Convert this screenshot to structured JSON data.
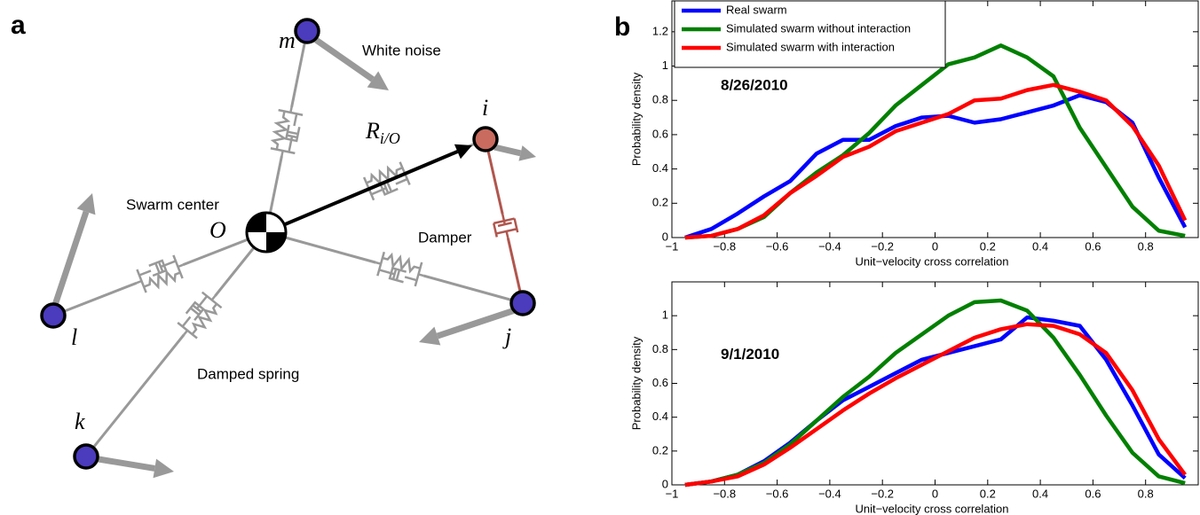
{
  "figure": {
    "label_a": "a",
    "label_b": "b"
  },
  "diagram": {
    "center_label": "Swarm center",
    "center_symbol": "O",
    "nodes": [
      "m",
      "i",
      "j",
      "k",
      "l"
    ],
    "vector": {
      "symbol": "R",
      "subscript": "i/O"
    },
    "annotations": {
      "white_noise": "White noise",
      "damper": "Damper",
      "damped_spring": "Damped spring"
    }
  },
  "chart_data": [
    {
      "type": "line",
      "annotation": "8/26/2010",
      "x_label": "Unit−velocity cross correlation",
      "y_label": "Probability density",
      "x": [
        -0.95,
        -0.85,
        -0.75,
        -0.65,
        -0.55,
        -0.45,
        -0.35,
        -0.25,
        -0.15,
        -0.05,
        0.05,
        0.15,
        0.25,
        0.35,
        0.45,
        0.55,
        0.65,
        0.75,
        0.85,
        0.95
      ],
      "series": [
        {
          "name": "Real swarm",
          "color": "#0000ff",
          "values": [
            0,
            0.05,
            0.14,
            0.24,
            0.33,
            0.49,
            0.57,
            0.57,
            0.65,
            0.7,
            0.71,
            0.67,
            0.69,
            0.73,
            0.77,
            0.83,
            0.79,
            0.67,
            0.35,
            0.06
          ]
        },
        {
          "name": "Simulated swarm without interaction",
          "color": "#008000",
          "values": [
            0,
            0.01,
            0.05,
            0.12,
            0.26,
            0.38,
            0.48,
            0.61,
            0.77,
            0.89,
            1.01,
            1.05,
            1.12,
            1.05,
            0.94,
            0.64,
            0.41,
            0.18,
            0.04,
            0.01
          ]
        },
        {
          "name": "Simulated swarm with interaction",
          "color": "#ff0000",
          "values": [
            0,
            0.01,
            0.05,
            0.13,
            0.26,
            0.36,
            0.47,
            0.53,
            0.62,
            0.67,
            0.72,
            0.8,
            0.81,
            0.86,
            0.89,
            0.85,
            0.8,
            0.65,
            0.42,
            0.1
          ]
        }
      ],
      "xlim": [
        -1,
        1
      ],
      "ylim": [
        0,
        1.38
      ],
      "xticks": [
        {
          "value": -1,
          "label": "−1"
        },
        {
          "value": -0.8,
          "label": "−0.8"
        },
        {
          "value": -0.6,
          "label": "−0.6"
        },
        {
          "value": -0.4,
          "label": "−0.4"
        },
        {
          "value": -0.2,
          "label": "−0.2"
        },
        0,
        0.2,
        0.4,
        0.6,
        0.8
      ],
      "yticks": [
        0,
        0.2,
        0.4,
        0.6,
        0.8,
        1,
        1.2
      ],
      "legend": "upper left"
    },
    {
      "type": "line",
      "annotation": "9/1/2010",
      "x_label": "Unit−velocity cross correlation",
      "y_label": "Probability density",
      "x": [
        -0.95,
        -0.85,
        -0.75,
        -0.65,
        -0.55,
        -0.45,
        -0.35,
        -0.25,
        -0.15,
        -0.05,
        0.05,
        0.15,
        0.25,
        0.35,
        0.45,
        0.55,
        0.65,
        0.75,
        0.85,
        0.95
      ],
      "series": [
        {
          "color": "#0000ff",
          "values": [
            0,
            0.02,
            0.06,
            0.14,
            0.25,
            0.38,
            0.5,
            0.58,
            0.66,
            0.74,
            0.78,
            0.82,
            0.86,
            0.99,
            0.97,
            0.94,
            0.74,
            0.47,
            0.18,
            0.04
          ]
        },
        {
          "color": "#008000",
          "values": [
            0,
            0.02,
            0.06,
            0.13,
            0.24,
            0.38,
            0.52,
            0.64,
            0.78,
            0.89,
            1.0,
            1.08,
            1.09,
            1.03,
            0.87,
            0.65,
            0.41,
            0.19,
            0.05,
            0.01
          ]
        },
        {
          "color": "#ff0000",
          "values": [
            0,
            0.02,
            0.05,
            0.12,
            0.22,
            0.33,
            0.44,
            0.54,
            0.63,
            0.71,
            0.79,
            0.87,
            0.92,
            0.95,
            0.94,
            0.89,
            0.78,
            0.56,
            0.27,
            0.06
          ]
        }
      ],
      "xlim": [
        -1,
        1
      ],
      "ylim": [
        0,
        1.2
      ],
      "xticks": [
        {
          "value": -1,
          "label": "−1"
        },
        {
          "value": -0.8,
          "label": "−0.8"
        },
        {
          "value": -0.6,
          "label": "−0.6"
        },
        {
          "value": -0.4,
          "label": "−0.4"
        },
        {
          "value": -0.2,
          "label": "−0.2"
        },
        0,
        0.2,
        0.4,
        0.6,
        0.8
      ],
      "yticks": [
        0,
        0.2,
        0.4,
        0.6,
        0.8,
        1
      ]
    }
  ]
}
